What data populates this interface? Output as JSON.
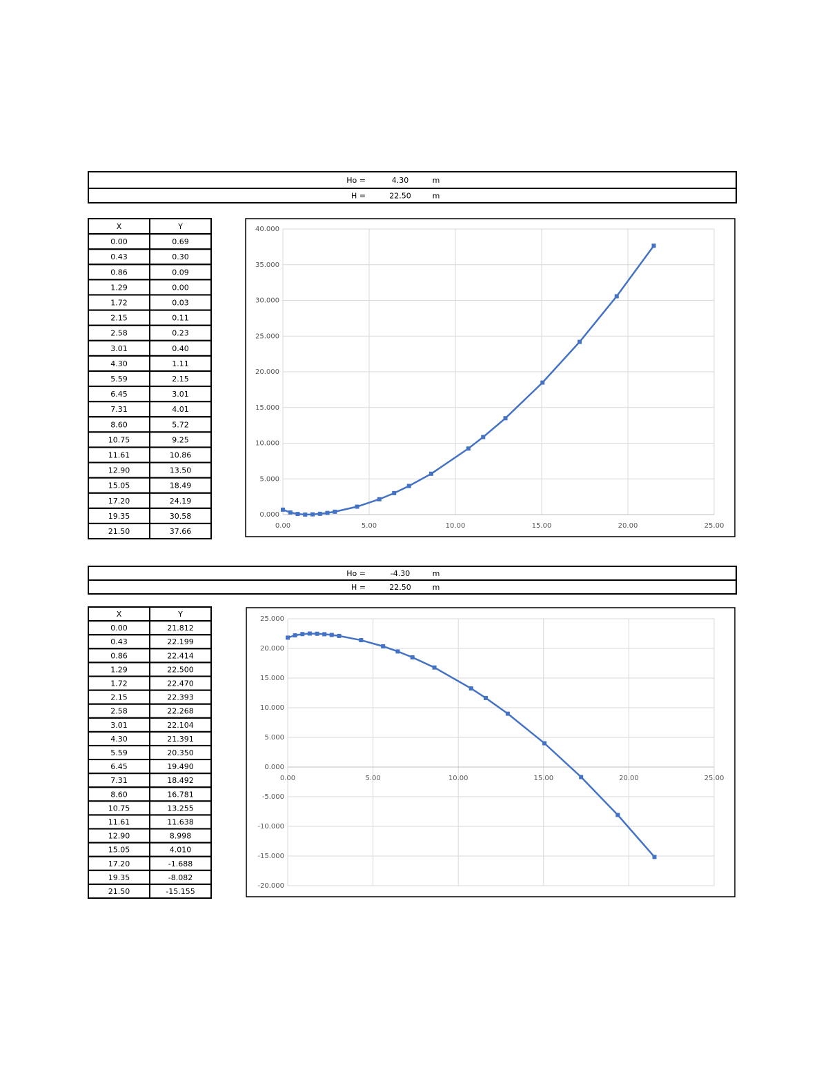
{
  "sections": [
    {
      "header": {
        "rows": [
          [
            "Ho =",
            "4.30",
            "m"
          ],
          [
            "H =",
            "22.50",
            "m"
          ]
        ]
      },
      "table": {
        "columns": [
          "X",
          "Y"
        ],
        "rows": [
          [
            "0.00",
            "0.69"
          ],
          [
            "0.43",
            "0.30"
          ],
          [
            "0.86",
            "0.09"
          ],
          [
            "1.29",
            "0.00"
          ],
          [
            "1.72",
            "0.03"
          ],
          [
            "2.15",
            "0.11"
          ],
          [
            "2.58",
            "0.23"
          ],
          [
            "3.01",
            "0.40"
          ],
          [
            "4.30",
            "1.11"
          ],
          [
            "5.59",
            "2.15"
          ],
          [
            "6.45",
            "3.01"
          ],
          [
            "7.31",
            "4.01"
          ],
          [
            "8.60",
            "5.72"
          ],
          [
            "10.75",
            "9.25"
          ],
          [
            "11.61",
            "10.86"
          ],
          [
            "12.90",
            "13.50"
          ],
          [
            "15.05",
            "18.49"
          ],
          [
            "17.20",
            "24.19"
          ],
          [
            "19.35",
            "30.58"
          ],
          [
            "21.50",
            "37.66"
          ]
        ]
      }
    },
    {
      "header": {
        "rows": [
          [
            "Ho =",
            "-4.30",
            "m"
          ],
          [
            "H =",
            "22.50",
            "m"
          ]
        ]
      },
      "table": {
        "columns": [
          "X",
          "Y"
        ],
        "rows": [
          [
            "0.00",
            "21.812"
          ],
          [
            "0.43",
            "22.199"
          ],
          [
            "0.86",
            "22.414"
          ],
          [
            "1.29",
            "22.500"
          ],
          [
            "1.72",
            "22.470"
          ],
          [
            "2.15",
            "22.393"
          ],
          [
            "2.58",
            "22.268"
          ],
          [
            "3.01",
            "22.104"
          ],
          [
            "4.30",
            "21.391"
          ],
          [
            "5.59",
            "20.350"
          ],
          [
            "6.45",
            "19.490"
          ],
          [
            "7.31",
            "18.492"
          ],
          [
            "8.60",
            "16.781"
          ],
          [
            "10.75",
            "13.255"
          ],
          [
            "11.61",
            "11.638"
          ],
          [
            "12.90",
            "8.998"
          ],
          [
            "15.05",
            "4.010"
          ],
          [
            "17.20",
            "-1.688"
          ],
          [
            "19.35",
            "-8.082"
          ],
          [
            "21.50",
            "-15.155"
          ]
        ]
      }
    }
  ],
  "chart_data": [
    {
      "type": "line",
      "color": "#4472c4",
      "grid": true,
      "x": [
        0,
        0.43,
        0.86,
        1.29,
        1.72,
        2.15,
        2.58,
        3.01,
        4.3,
        5.59,
        6.45,
        7.31,
        8.6,
        10.75,
        11.61,
        12.9,
        15.05,
        17.2,
        19.35,
        21.5
      ],
      "values": [
        0.69,
        0.3,
        0.09,
        0.0,
        0.03,
        0.11,
        0.23,
        0.4,
        1.11,
        2.15,
        3.01,
        4.01,
        5.72,
        9.25,
        10.86,
        13.5,
        18.49,
        24.19,
        30.58,
        37.66
      ],
      "xlim": [
        0,
        25
      ],
      "xticks": [
        {
          "value": 0,
          "label": "0.00"
        },
        {
          "value": 5,
          "label": "5.00"
        },
        {
          "value": 10,
          "label": "10.00"
        },
        {
          "value": 15,
          "label": "15.00"
        },
        {
          "value": 20,
          "label": "20.00"
        },
        {
          "value": 25,
          "label": "25.00"
        }
      ],
      "ylim": [
        0,
        40
      ],
      "yticks": [
        {
          "value": 0,
          "label": "0.000"
        },
        {
          "value": 5,
          "label": "5.000"
        },
        {
          "value": 10,
          "label": "10.000"
        },
        {
          "value": 15,
          "label": "15.000"
        },
        {
          "value": 20,
          "label": "20.000"
        },
        {
          "value": 25,
          "label": "25.000"
        },
        {
          "value": 30,
          "label": "30.000"
        },
        {
          "value": 35,
          "label": "35.000"
        },
        {
          "value": 40,
          "label": "40.000"
        }
      ]
    },
    {
      "type": "line",
      "color": "#4472c4",
      "grid": true,
      "x": [
        0,
        0.43,
        0.86,
        1.29,
        1.72,
        2.15,
        2.58,
        3.01,
        4.3,
        5.59,
        6.45,
        7.31,
        8.6,
        10.75,
        11.61,
        12.9,
        15.05,
        17.2,
        19.35,
        21.5
      ],
      "values": [
        21.812,
        22.199,
        22.414,
        22.5,
        22.47,
        22.393,
        22.268,
        22.104,
        21.391,
        20.35,
        19.49,
        18.492,
        16.781,
        13.255,
        11.638,
        8.998,
        4.01,
        -1.688,
        -8.082,
        -15.155
      ],
      "xlim": [
        0,
        25
      ],
      "xticks": [
        {
          "value": 0,
          "label": "0.00"
        },
        {
          "value": 5,
          "label": "5.00"
        },
        {
          "value": 10,
          "label": "10.00"
        },
        {
          "value": 15,
          "label": "15.00"
        },
        {
          "value": 20,
          "label": "20.00"
        },
        {
          "value": 25,
          "label": "25.00"
        }
      ],
      "ylim": [
        -20,
        25
      ],
      "yticks": [
        {
          "value": -20,
          "label": "-20.000"
        },
        {
          "value": -15,
          "label": "-15.000"
        },
        {
          "value": -10,
          "label": "-10.000"
        },
        {
          "value": -5,
          "label": "-5.000"
        },
        {
          "value": 0,
          "label": "0.000"
        },
        {
          "value": 5,
          "label": "5.000"
        },
        {
          "value": 10,
          "label": "10.000"
        },
        {
          "value": 15,
          "label": "15.000"
        },
        {
          "value": 20,
          "label": "20.000"
        },
        {
          "value": 25,
          "label": "25.000"
        }
      ]
    }
  ]
}
